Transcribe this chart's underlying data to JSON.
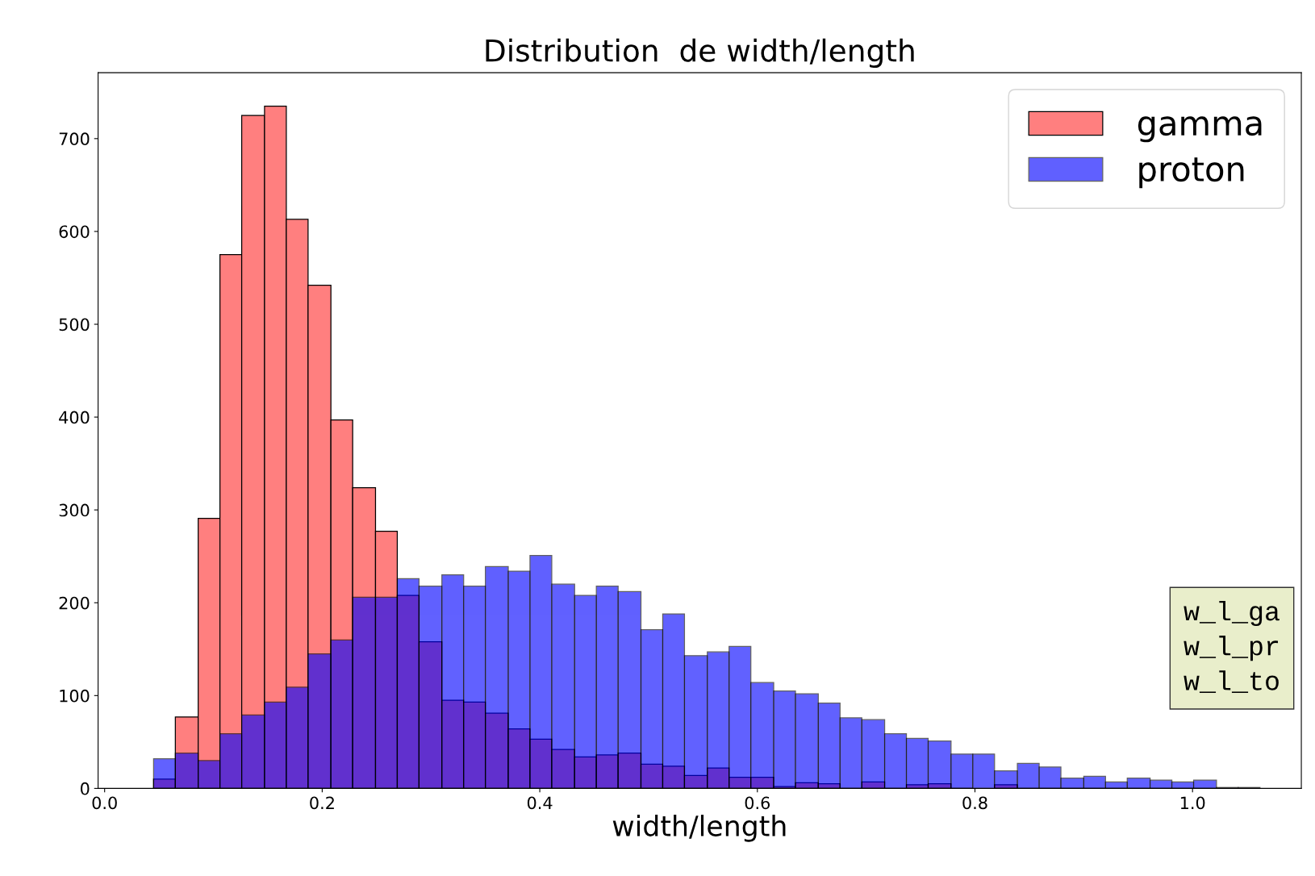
{
  "chart_data": {
    "type": "histogram",
    "title": "Distribution  de width/length",
    "xlabel": "width/length",
    "bins": [
      0.045,
      0.065,
      0.086,
      0.106,
      0.126,
      0.147,
      0.167,
      0.187,
      0.208,
      0.228,
      0.249,
      0.269,
      0.289,
      0.31,
      0.33,
      0.35,
      0.371,
      0.391,
      0.411,
      0.432,
      0.452,
      0.472,
      0.493,
      0.513,
      0.533,
      0.554,
      0.574,
      0.594,
      0.615,
      0.635,
      0.656,
      0.676,
      0.696,
      0.717,
      0.737,
      0.757,
      0.778,
      0.798,
      0.818,
      0.839,
      0.859,
      0.879,
      0.9,
      0.92,
      0.94,
      0.961,
      0.981,
      1.001,
      1.022,
      1.042,
      1.062
    ],
    "series": [
      {
        "name": "gamma",
        "color": "#ff7f7f",
        "values": [
          10,
          77,
          291,
          575,
          725,
          735,
          613,
          542,
          397,
          324,
          277,
          208,
          158,
          95,
          93,
          81,
          64,
          53,
          42,
          34,
          36,
          38,
          26,
          24,
          14,
          22,
          12,
          12,
          2,
          6,
          5,
          0,
          7,
          0,
          4,
          5,
          0,
          null,
          4,
          0,
          0,
          0,
          0,
          0,
          0,
          0,
          0,
          0,
          0,
          0
        ]
      },
      {
        "name": "proton",
        "color": "#6161ff",
        "values": [
          32,
          38,
          30,
          59,
          79,
          93,
          109,
          145,
          160,
          206,
          206,
          226,
          218,
          230,
          218,
          239,
          234,
          251,
          220,
          208,
          218,
          212,
          171,
          188,
          143,
          147,
          153,
          114,
          105,
          102,
          92,
          76,
          74,
          59,
          54,
          51,
          37,
          37,
          19,
          27,
          23,
          11,
          13,
          7,
          11,
          9,
          7,
          9,
          1,
          1
        ]
      }
    ],
    "xlim": [
      -0.006,
      1.1
    ],
    "ylim": [
      0,
      771
    ],
    "xticks": [
      {
        "value": 0,
        "label": "0.0"
      },
      {
        "value": 0.2,
        "label": "0.2"
      },
      {
        "value": 0.4,
        "label": "0.4"
      },
      {
        "value": 0.6,
        "label": "0.6"
      },
      {
        "value": 0.8,
        "label": "0.8"
      },
      {
        "value": 1.0,
        "label": "1.0"
      }
    ],
    "yticks": [
      0,
      100,
      200,
      300,
      400,
      500,
      600,
      700
    ],
    "legend": "top right",
    "grid": false,
    "annotations": [
      "w_l_ga",
      "w_l_pr",
      "w_l_to"
    ]
  }
}
